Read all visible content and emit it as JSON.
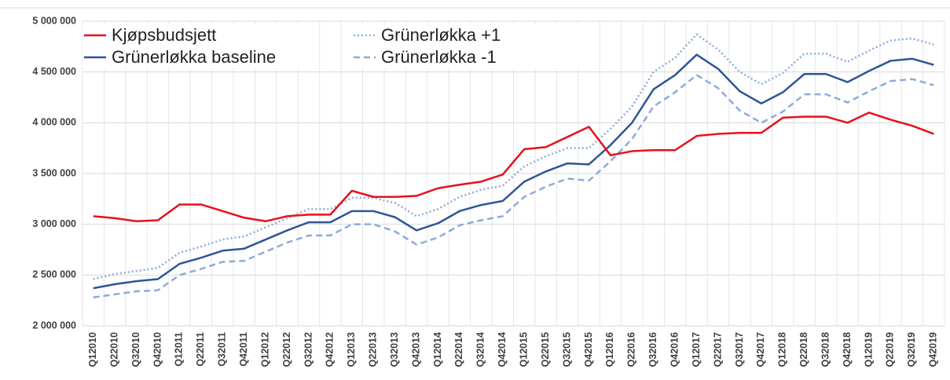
{
  "chart_data": {
    "type": "line",
    "categories": [
      "Q12010",
      "Q22010",
      "Q32010",
      "Q42010",
      "Q12011",
      "Q22011",
      "Q32011",
      "Q42011",
      "Q12012",
      "Q22012",
      "Q32012",
      "Q42012",
      "Q12013",
      "Q22013",
      "Q32013",
      "Q42013",
      "Q12014",
      "Q22014",
      "Q32014",
      "Q42014",
      "Q12015",
      "Q22015",
      "Q32015",
      "Q42015",
      "Q12016",
      "Q22016",
      "Q32016",
      "Q42016",
      "Q12017",
      "Q22017",
      "Q32017",
      "Q42017",
      "Q12018",
      "Q22018",
      "Q32018",
      "Q42018",
      "Q12019",
      "Q22019",
      "Q32019",
      "Q42019"
    ],
    "series": [
      {
        "name": "Kjøpsbudsjett",
        "color": "#e8101a",
        "dash": "solid",
        "values": [
          3080000,
          3060000,
          3030000,
          3040000,
          3195000,
          3195000,
          3130000,
          3065000,
          3030000,
          3080000,
          3095000,
          3095000,
          3330000,
          3270000,
          3270000,
          3280000,
          3355000,
          3390000,
          3420000,
          3490000,
          3740000,
          3760000,
          3860000,
          3960000,
          3680000,
          3720000,
          3730000,
          3730000,
          3870000,
          3890000,
          3900000,
          3900000,
          4050000,
          4060000,
          4060000,
          4000000,
          4100000,
          4030000,
          3970000,
          3890000
        ]
      },
      {
        "name": "Grünerløkka baseline",
        "color": "#2f5597",
        "dash": "solid",
        "values": [
          2370000,
          2410000,
          2440000,
          2460000,
          2610000,
          2670000,
          2740000,
          2760000,
          2850000,
          2940000,
          3020000,
          3020000,
          3130000,
          3130000,
          3070000,
          2940000,
          3010000,
          3130000,
          3190000,
          3230000,
          3420000,
          3520000,
          3600000,
          3590000,
          3780000,
          4000000,
          4330000,
          4470000,
          4670000,
          4530000,
          4310000,
          4190000,
          4300000,
          4480000,
          4480000,
          4400000,
          4510000,
          4610000,
          4630000,
          4570000
        ]
      },
      {
        "name": "Grünerløkka +1",
        "color": "#8eaadb",
        "dash": "dotted",
        "values": [
          2460000,
          2510000,
          2540000,
          2570000,
          2720000,
          2780000,
          2850000,
          2880000,
          2970000,
          3060000,
          3150000,
          3150000,
          3260000,
          3260000,
          3210000,
          3080000,
          3150000,
          3270000,
          3340000,
          3380000,
          3570000,
          3670000,
          3750000,
          3750000,
          3940000,
          4160000,
          4500000,
          4640000,
          4870000,
          4720000,
          4500000,
          4380000,
          4490000,
          4680000,
          4680000,
          4600000,
          4710000,
          4810000,
          4830000,
          4770000
        ]
      },
      {
        "name": "Grünerløkka -1",
        "color": "#8eaadb",
        "dash": "dashed",
        "values": [
          2280000,
          2310000,
          2340000,
          2350000,
          2500000,
          2560000,
          2630000,
          2640000,
          2730000,
          2820000,
          2890000,
          2890000,
          3000000,
          3000000,
          2930000,
          2800000,
          2870000,
          2990000,
          3040000,
          3080000,
          3270000,
          3370000,
          3450000,
          3430000,
          3620000,
          3840000,
          4160000,
          4300000,
          4470000,
          4340000,
          4120000,
          4000000,
          4110000,
          4280000,
          4280000,
          4200000,
          4310000,
          4410000,
          4430000,
          4370000
        ]
      }
    ],
    "ylim": [
      2000000,
      5000000
    ],
    "yticks": [
      {
        "value": 2000000,
        "label": "2 000 000"
      },
      {
        "value": 2500000,
        "label": "2 500 000"
      },
      {
        "value": 3000000,
        "label": "3 000 000"
      },
      {
        "value": 3500000,
        "label": "3 500 000"
      },
      {
        "value": 4000000,
        "label": "4 000 000"
      },
      {
        "value": 4500000,
        "label": "4 500 000"
      },
      {
        "value": 5000000,
        "label": "5 000 000"
      }
    ],
    "grid": true,
    "legend": "top-left"
  }
}
